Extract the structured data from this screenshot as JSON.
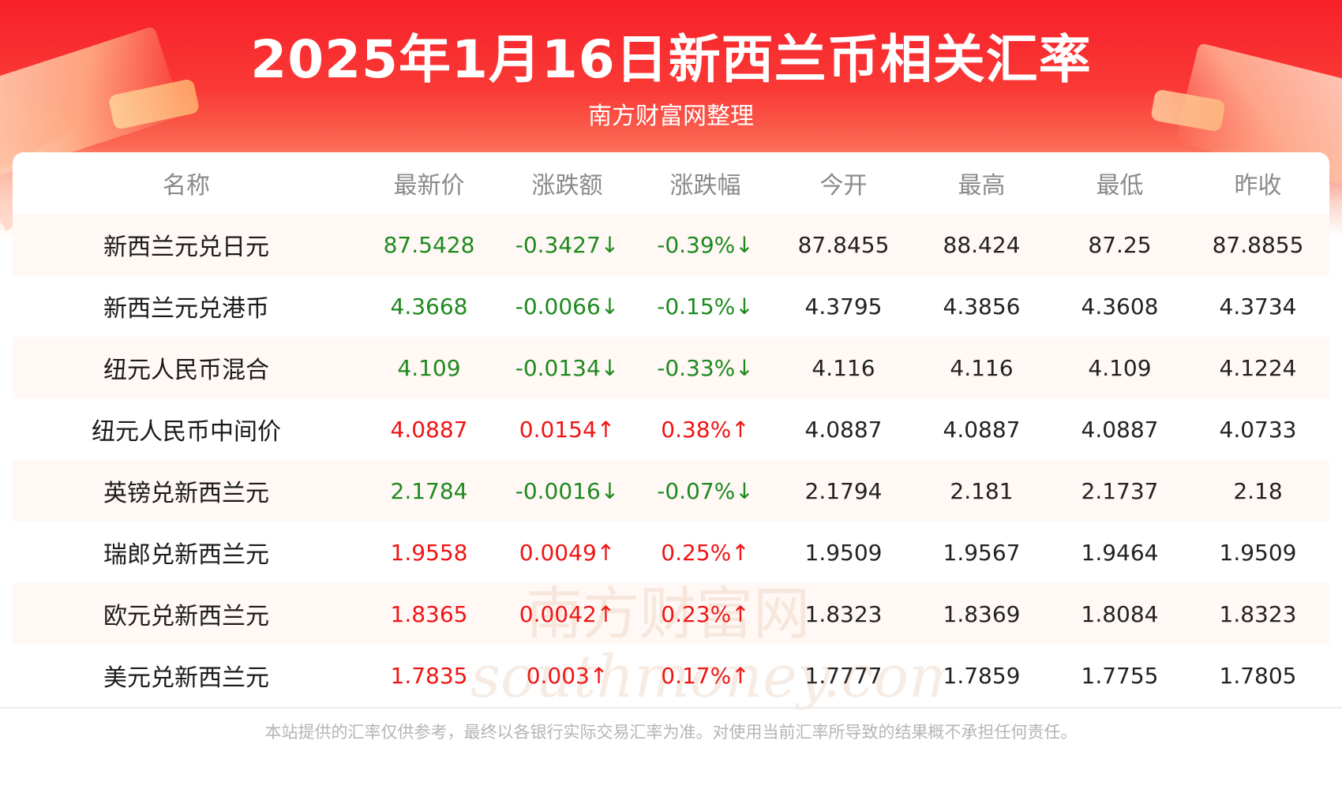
{
  "header": {
    "title": "2025年1月16日新西兰币相关汇率",
    "subtitle": "南方财富网整理"
  },
  "table": {
    "columns": [
      "名称",
      "最新价",
      "涨跌额",
      "涨跌幅",
      "今开",
      "最高",
      "最低",
      "昨收"
    ],
    "rows": [
      {
        "name": "新西兰元兑日元",
        "latest": "87.5428",
        "change": "-0.3427↓",
        "change_pct": "-0.39%↓",
        "open": "87.8455",
        "high": "88.424",
        "low": "87.25",
        "prev_close": "87.8855",
        "trend": "down"
      },
      {
        "name": "新西兰元兑港币",
        "latest": "4.3668",
        "change": "-0.0066↓",
        "change_pct": "-0.15%↓",
        "open": "4.3795",
        "high": "4.3856",
        "low": "4.3608",
        "prev_close": "4.3734",
        "trend": "down"
      },
      {
        "name": "纽元人民币混合",
        "latest": "4.109",
        "change": "-0.0134↓",
        "change_pct": "-0.33%↓",
        "open": "4.116",
        "high": "4.116",
        "low": "4.109",
        "prev_close": "4.1224",
        "trend": "down"
      },
      {
        "name": "纽元人民币中间价",
        "latest": "4.0887",
        "change": "0.0154↑",
        "change_pct": "0.38%↑",
        "open": "4.0887",
        "high": "4.0887",
        "low": "4.0887",
        "prev_close": "4.0733",
        "trend": "up"
      },
      {
        "name": "英镑兑新西兰元",
        "latest": "2.1784",
        "change": "-0.0016↓",
        "change_pct": "-0.07%↓",
        "open": "2.1794",
        "high": "2.181",
        "low": "2.1737",
        "prev_close": "2.18",
        "trend": "down"
      },
      {
        "name": "瑞郎兑新西兰元",
        "latest": "1.9558",
        "change": "0.0049↑",
        "change_pct": "0.25%↑",
        "open": "1.9509",
        "high": "1.9567",
        "low": "1.9464",
        "prev_close": "1.9509",
        "trend": "up"
      },
      {
        "name": "欧元兑新西兰元",
        "latest": "1.8365",
        "change": "0.0042↑",
        "change_pct": "0.23%↑",
        "open": "1.8323",
        "high": "1.8369",
        "low": "1.8084",
        "prev_close": "1.8323",
        "trend": "up"
      },
      {
        "name": "美元兑新西兰元",
        "latest": "1.7835",
        "change": "0.003↑",
        "change_pct": "0.17%↑",
        "open": "1.7777",
        "high": "1.7859",
        "low": "1.7755",
        "prev_close": "1.7805",
        "trend": "up"
      }
    ]
  },
  "watermark": {
    "line1": "南方财富网",
    "line2": "southmoney.com"
  },
  "footer": {
    "disclaimer": "本站提供的汇率仅供参考，最终以各银行实际交易汇率为准。对使用当前汇率所导致的结果概不承担任何责任。"
  },
  "colors": {
    "up": "#f01414",
    "down": "#1e8a1e",
    "header_red": "#f8202a"
  }
}
